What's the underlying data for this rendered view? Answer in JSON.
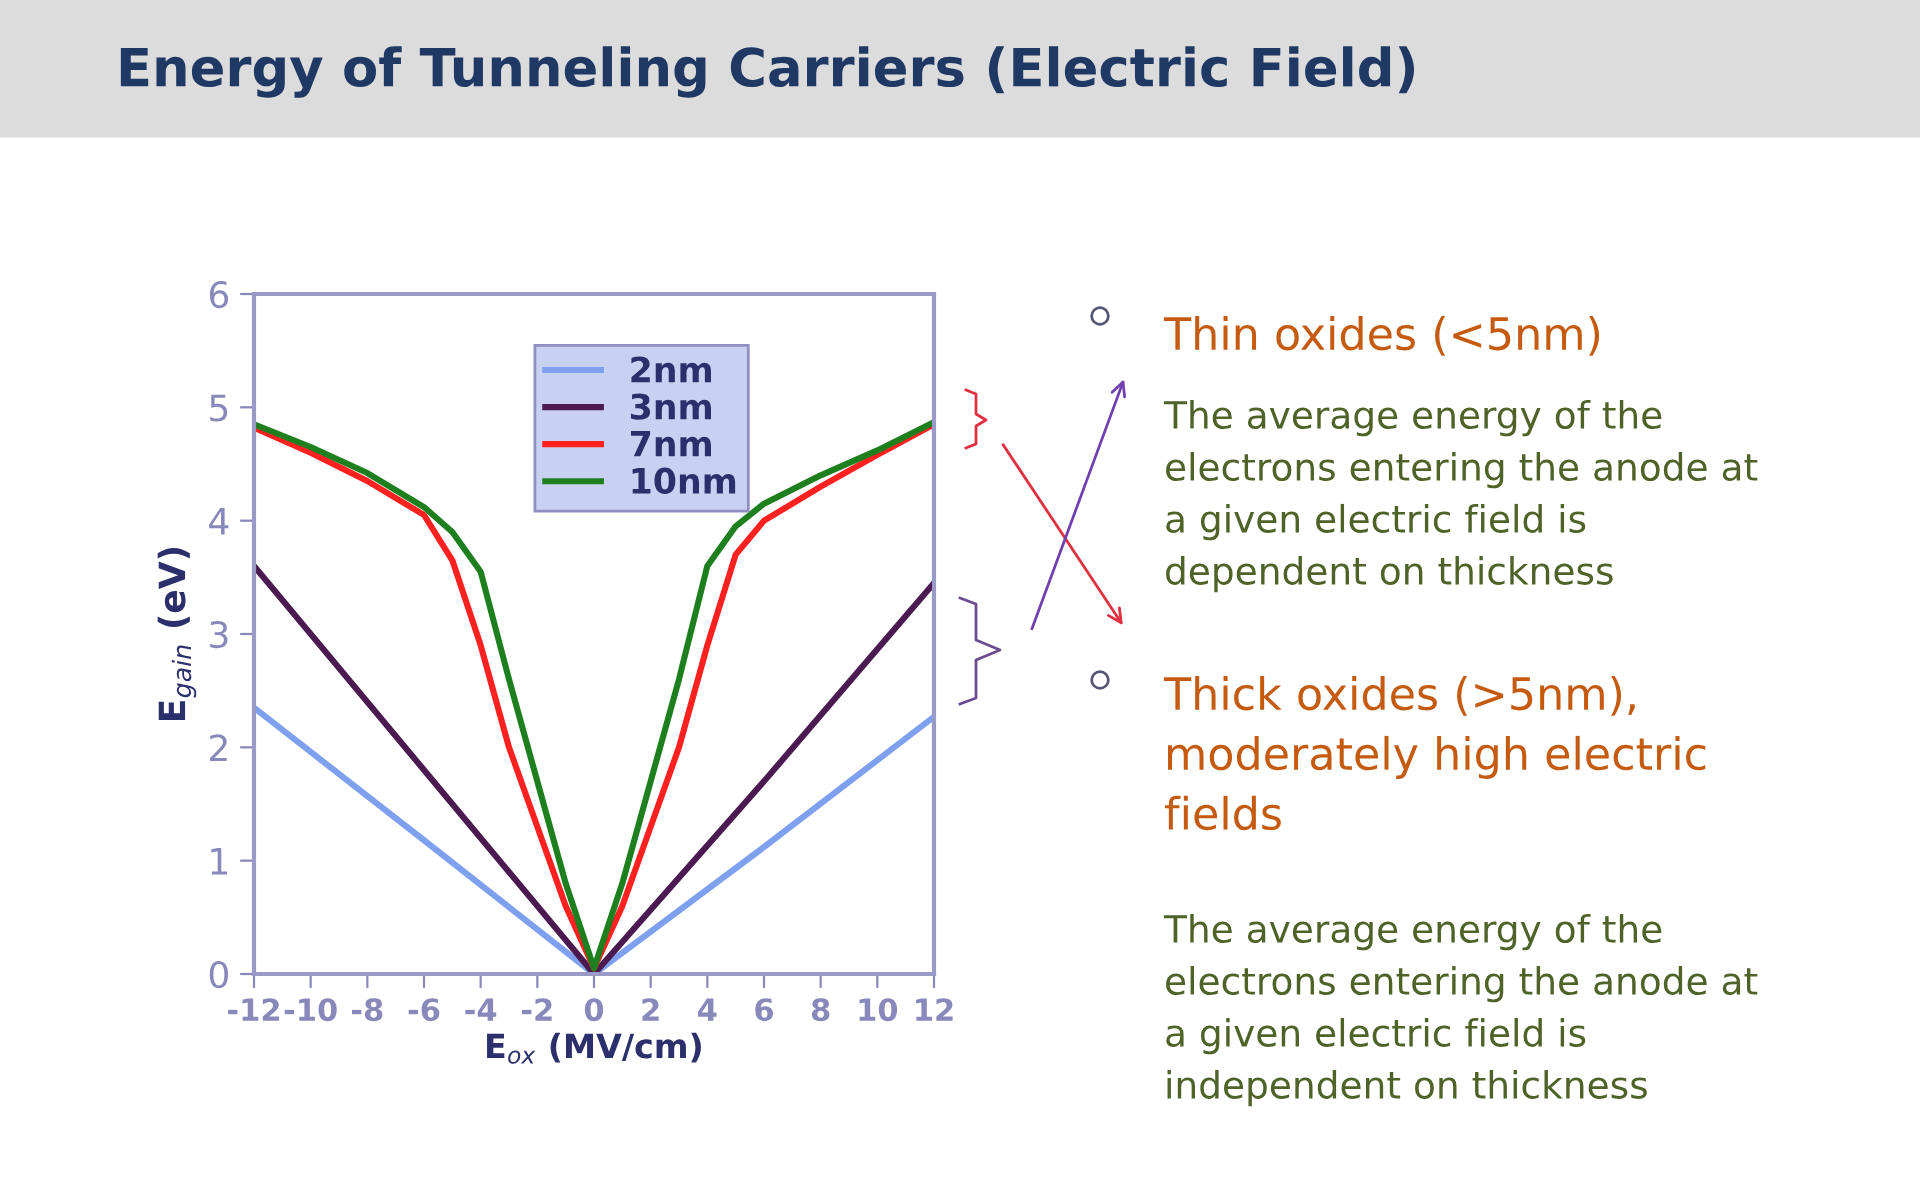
{
  "chart_data": {
    "type": "line",
    "title": "Energy of Tunneling Carriers (Electric Field)",
    "xlabel": "E$_{ox}$ (MV/cm)",
    "ylabel": "E$_{gain}$ (eV)",
    "xlim": [
      -12,
      12
    ],
    "xticks": [
      -12,
      -10,
      -8,
      -6,
      -4,
      -2,
      0,
      2,
      4,
      6,
      8,
      10,
      12
    ],
    "ylim": [
      0,
      6
    ],
    "yticks": [
      0,
      1,
      2,
      3,
      4,
      5,
      6
    ],
    "grid": false,
    "legend": "top",
    "marker": "none",
    "line_style": "solid",
    "series": [
      {
        "name": "2nm",
        "color": "#7f9fef",
        "x": [
          -12,
          -6,
          0,
          6,
          12
        ],
        "values": [
          2.35,
          1.18,
          0,
          1.12,
          2.27
        ]
      },
      {
        "name": "3nm",
        "color": "#4b1a50",
        "x": [
          -12,
          -6,
          0,
          6,
          12
        ],
        "values": [
          3.6,
          1.8,
          0,
          1.7,
          3.45
        ]
      },
      {
        "name": "7nm",
        "color": "#ff2020",
        "x": [
          -12,
          -10,
          -8,
          -6,
          -5,
          -4,
          -3,
          -2,
          -1,
          0,
          1,
          2,
          3,
          4,
          5,
          6,
          8,
          10,
          12
        ],
        "values": [
          4.82,
          4.6,
          4.35,
          4.05,
          3.65,
          2.9,
          2.0,
          1.3,
          0.6,
          0.05,
          0.6,
          1.3,
          2.0,
          2.9,
          3.7,
          4.0,
          4.3,
          4.58,
          4.85
        ]
      },
      {
        "name": "10nm",
        "color": "#1e7f1e",
        "x": [
          -12,
          -10,
          -8,
          -6,
          -5,
          -4,
          -3,
          -2,
          -1,
          0,
          1,
          2,
          3,
          4,
          5,
          6,
          8,
          10,
          12
        ],
        "values": [
          4.85,
          4.65,
          4.42,
          4.12,
          3.9,
          3.55,
          2.6,
          1.7,
          0.8,
          0.05,
          0.8,
          1.7,
          2.6,
          3.6,
          3.95,
          4.15,
          4.4,
          4.62,
          4.87
        ]
      }
    ],
    "annotations": [
      "Thin oxides (<5nm)",
      "The average energy of the\nelectrons entering the anode at\na given electric field is\ndependent on thickness",
      "Thick oxides (>5nm),\nmoderately high electric\nfields",
      "The average energy of the\nelectrons entering the anode at\na given electric field is\nindependent on thickness"
    ]
  }
}
